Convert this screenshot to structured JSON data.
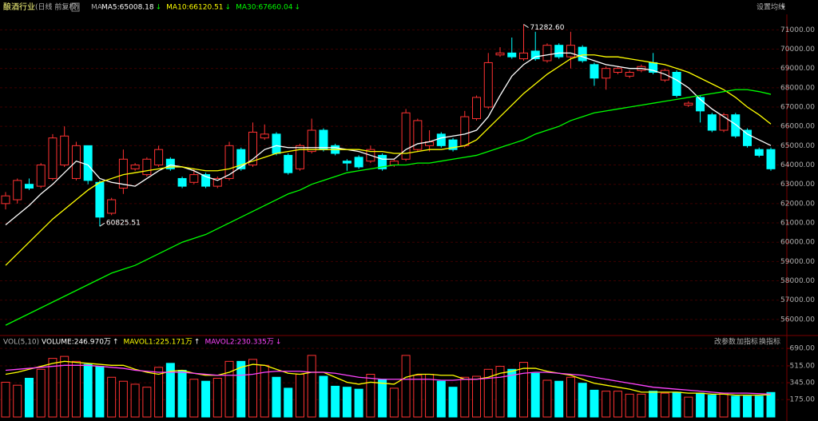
{
  "chart_data": {
    "type": "candlestick",
    "title": "酿酒行业",
    "subtitle": "(日线 前复权)",
    "help_icon": "?",
    "ma_prefix": "MA",
    "settings_button": "设置均线",
    "settings_arrow": "▾",
    "up_color": "#ff3232",
    "down_color": "#00ffff",
    "grid": true,
    "open": [
      62000,
      62200,
      63000,
      62900,
      63300,
      64000,
      63300,
      65000,
      63100,
      61500,
      62800,
      63800,
      63500,
      64000,
      64300,
      63300,
      63100,
      63500,
      62900,
      63300,
      64800,
      64000,
      65400,
      65600,
      64500,
      63800,
      64700,
      65800,
      65000,
      64200,
      64400,
      64200,
      64500,
      64000,
      64300,
      64800,
      65000,
      65600,
      65300,
      65000,
      66400,
      67000,
      69700,
      69800,
      69500,
      69900,
      69400,
      70200,
      69600,
      70100,
      69200,
      68500,
      68800,
      68600,
      68900,
      69300,
      68400,
      68800,
      67100,
      67500,
      66600,
      65800,
      66600,
      65800,
      64800,
      64800
    ],
    "high": [
      62600,
      63300,
      63300,
      64100,
      65600,
      66000,
      65200,
      65000,
      63200,
      62300,
      64800,
      64100,
      64400,
      65000,
      64400,
      63400,
      63800,
      63600,
      63400,
      65200,
      64900,
      66200,
      66100,
      65700,
      64600,
      65100,
      66400,
      65900,
      65100,
      64300,
      64500,
      65000,
      64600,
      64300,
      66900,
      66400,
      65800,
      65700,
      65400,
      66800,
      67600,
      69800,
      70100,
      70600,
      71282.6,
      70900,
      70300,
      70300,
      70900,
      70200,
      69300,
      69100,
      69100,
      68900,
      69200,
      69800,
      69000,
      68900,
      67300,
      67600,
      66700,
      66700,
      66700,
      65900,
      64900,
      64900
    ],
    "low": [
      61700,
      62000,
      62700,
      62800,
      63200,
      63900,
      63200,
      63000,
      60825.51,
      61400,
      62500,
      63700,
      63400,
      63900,
      63700,
      62800,
      63000,
      62800,
      62800,
      63200,
      63700,
      63900,
      65300,
      64500,
      63500,
      63700,
      64600,
      64700,
      64500,
      63700,
      63800,
      64100,
      63700,
      63900,
      64200,
      64700,
      64700,
      64900,
      64700,
      64900,
      66300,
      66900,
      69600,
      69500,
      69400,
      69400,
      69300,
      69500,
      69000,
      69300,
      68100,
      67900,
      68700,
      68500,
      68800,
      68700,
      68300,
      67500,
      67000,
      66200,
      65700,
      65700,
      65400,
      64900,
      64400,
      63700
    ],
    "close": [
      62400,
      63200,
      62800,
      64000,
      65400,
      65500,
      65000,
      63200,
      61300,
      62200,
      64300,
      64000,
      64300,
      64800,
      63800,
      62900,
      63500,
      62900,
      63300,
      65000,
      63800,
      65700,
      65600,
      64600,
      63600,
      65000,
      65800,
      64800,
      64600,
      64100,
      63900,
      64800,
      63800,
      64200,
      66700,
      66300,
      65200,
      65000,
      64800,
      66500,
      67500,
      69300,
      69800,
      69600,
      69800,
      69500,
      70200,
      69600,
      70200,
      69400,
      68500,
      69000,
      69000,
      68800,
      69100,
      68800,
      68900,
      67600,
      67200,
      66800,
      65800,
      66600,
      65500,
      65000,
      64500,
      63800
    ],
    "ylim": [
      55250,
      71800
    ],
    "yticks": [
      {
        "value": 56000,
        "label": "56000.00"
      },
      {
        "value": 57000,
        "label": "57000.00"
      },
      {
        "value": 58000,
        "label": "58000.00"
      },
      {
        "value": 59000,
        "label": "59000.00"
      },
      {
        "value": 60000,
        "label": "60000.00"
      },
      {
        "value": 61000,
        "label": "61000.00"
      },
      {
        "value": 62000,
        "label": "62000.00"
      },
      {
        "value": 63000,
        "label": "63000.00"
      },
      {
        "value": 64000,
        "label": "64000.00"
      },
      {
        "value": 65000,
        "label": "65000.00"
      },
      {
        "value": 66000,
        "label": "66000.00"
      },
      {
        "value": 67000,
        "label": "67000.00"
      },
      {
        "value": 68000,
        "label": "68000.00"
      },
      {
        "value": 69000,
        "label": "69000.00"
      },
      {
        "value": 70000,
        "label": "70000.00"
      },
      {
        "value": 71000,
        "label": "71000.00"
      }
    ],
    "annotations": [
      {
        "value": 71282.6,
        "label": "71282.60",
        "at": "high"
      },
      {
        "value": 60825.51,
        "label": "60825.51",
        "at": "low"
      }
    ],
    "ma_series": [
      {
        "name": "MA5:65008.18",
        "trend": "↓",
        "color": "#ffffff",
        "values": [
          60900,
          61400,
          61900,
          62500,
          63000,
          63600,
          64200,
          64000,
          63300,
          63100,
          63000,
          62900,
          63300,
          63700,
          64000,
          63900,
          63700,
          63400,
          63200,
          63500,
          63900,
          64300,
          64800,
          65000,
          64900,
          64900,
          64900,
          64900,
          64900,
          64800,
          64700,
          64500,
          64300,
          64300,
          64800,
          65100,
          65200,
          65400,
          65500,
          65600,
          65800,
          66500,
          67600,
          68600,
          69200,
          69600,
          69700,
          69800,
          69800,
          69600,
          69400,
          69200,
          69100,
          69000,
          69000,
          68900,
          68700,
          68400,
          68000,
          67400,
          66900,
          66500,
          66100,
          65600,
          65300,
          65008.18
        ]
      },
      {
        "name": "MA10:66120.51",
        "trend": "↓",
        "color": "#ffff00",
        "values": [
          58800,
          59400,
          60000,
          60600,
          61200,
          61700,
          62200,
          62700,
          63100,
          63300,
          63500,
          63600,
          63700,
          63800,
          63900,
          63900,
          63800,
          63700,
          63700,
          63800,
          64000,
          64200,
          64400,
          64600,
          64700,
          64800,
          64800,
          64800,
          64800,
          64800,
          64800,
          64700,
          64700,
          64600,
          64600,
          64700,
          64800,
          64800,
          64900,
          65000,
          65300,
          65900,
          66500,
          67100,
          67700,
          68200,
          68700,
          69100,
          69500,
          69700,
          69700,
          69600,
          69600,
          69500,
          69400,
          69300,
          69200,
          69000,
          68800,
          68500,
          68200,
          67900,
          67500,
          67000,
          66600,
          66120.51
        ]
      },
      {
        "name": "MA30:67660.04",
        "trend": "↓",
        "color": "#00ff00",
        "values": [
          55700,
          56000,
          56300,
          56600,
          56900,
          57200,
          57500,
          57800,
          58100,
          58400,
          58600,
          58800,
          59100,
          59400,
          59700,
          60000,
          60200,
          60400,
          60700,
          61000,
          61300,
          61600,
          61900,
          62200,
          62500,
          62700,
          63000,
          63200,
          63400,
          63600,
          63700,
          63800,
          63900,
          64000,
          64000,
          64100,
          64100,
          64200,
          64300,
          64400,
          64500,
          64700,
          64900,
          65100,
          65300,
          65600,
          65800,
          66000,
          66300,
          66500,
          66700,
          66800,
          66900,
          67000,
          67100,
          67200,
          67300,
          67400,
          67500,
          67600,
          67700,
          67800,
          67900,
          67900,
          67800,
          67660.04
        ]
      }
    ],
    "volume_panel": {
      "title": "VOL(5,10)",
      "buttons": [
        "改参数",
        "加指标",
        "换指标"
      ],
      "ylim": [
        0,
        820
      ],
      "yticks": [
        {
          "value": 175,
          "label": "175.00"
        },
        {
          "value": 345,
          "label": "345.00"
        },
        {
          "value": 515,
          "label": "515.00"
        },
        {
          "value": 690,
          "label": "690.00"
        }
      ],
      "volume": {
        "name": "VOLUME:246.970万",
        "trend": "↑",
        "color": "#ffffff",
        "values": [
          350,
          320,
          390,
          480,
          590,
          610,
          560,
          530,
          510,
          400,
          360,
          330,
          300,
          500,
          540,
          470,
          380,
          360,
          390,
          560,
          560,
          580,
          520,
          400,
          290,
          430,
          620,
          410,
          310,
          300,
          280,
          430,
          380,
          290,
          620,
          420,
          430,
          360,
          300,
          400,
          410,
          480,
          510,
          480,
          550,
          440,
          370,
          360,
          400,
          340,
          270,
          260,
          260,
          230,
          230,
          260,
          240,
          250,
          200,
          240,
          220,
          240,
          210,
          210,
          210,
          246.97
        ]
      },
      "series": [
        {
          "name": "MAVOL1:225.171万",
          "trend": "↑",
          "color": "#ffff00",
          "values": [
            430,
            450,
            480,
            510,
            540,
            560,
            550,
            540,
            530,
            520,
            520,
            480,
            450,
            430,
            460,
            470,
            440,
            420,
            420,
            450,
            500,
            530,
            520,
            480,
            440,
            430,
            450,
            450,
            400,
            350,
            330,
            350,
            340,
            330,
            400,
            430,
            430,
            420,
            420,
            380,
            380,
            400,
            440,
            460,
            490,
            490,
            460,
            440,
            420,
            380,
            340,
            320,
            300,
            280,
            250,
            250,
            250,
            250,
            240,
            240,
            230,
            230,
            220,
            220,
            220,
            225.171
          ]
        },
        {
          "name": "MAVOL2:230.335万",
          "trend": "↓",
          "color": "#ff44ff",
          "values": [
            470,
            480,
            490,
            500,
            510,
            520,
            520,
            520,
            510,
            500,
            490,
            470,
            460,
            450,
            450,
            450,
            440,
            430,
            420,
            420,
            420,
            430,
            450,
            460,
            460,
            460,
            450,
            450,
            440,
            420,
            400,
            390,
            380,
            380,
            380,
            380,
            380,
            370,
            370,
            380,
            380,
            390,
            400,
            420,
            440,
            450,
            450,
            440,
            430,
            420,
            400,
            380,
            360,
            340,
            320,
            300,
            290,
            280,
            270,
            260,
            250,
            240,
            240,
            240,
            235,
            230.335
          ]
        }
      ]
    }
  }
}
